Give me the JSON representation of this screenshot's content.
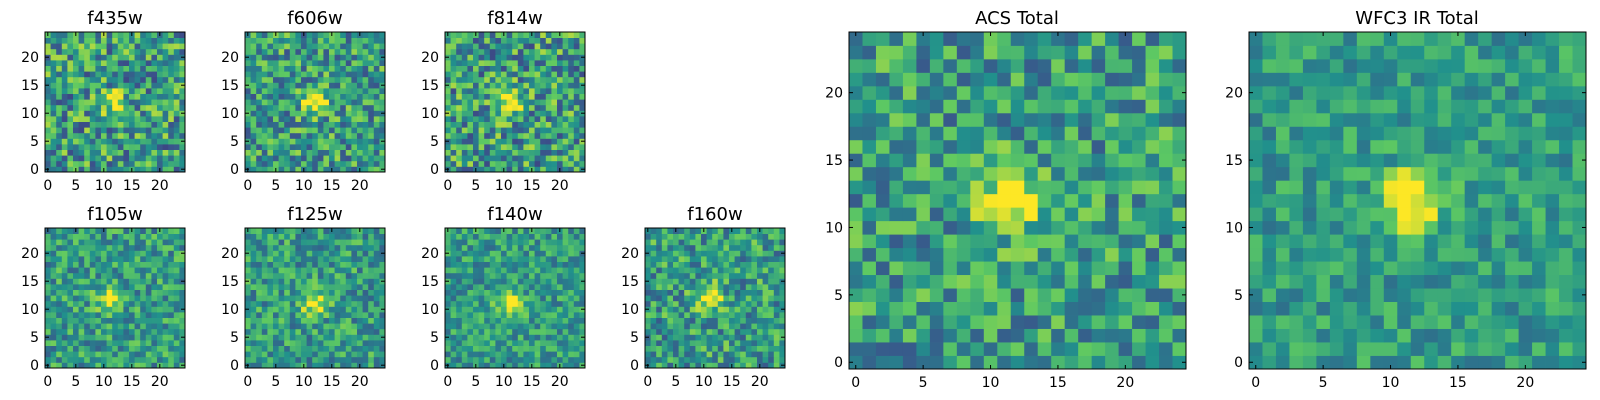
{
  "figure": {
    "background": "#ffffff",
    "colormap": "viridis",
    "colormap_stops": [
      "#440154",
      "#3b528b",
      "#21918c",
      "#5ec962",
      "#fde725"
    ],
    "axis_color": "#000000"
  },
  "chart_data": [
    {
      "type": "heatmap",
      "title": "f435w",
      "size": 25,
      "ticks": [
        0,
        5,
        10,
        15,
        20
      ],
      "xlim": [
        0,
        24
      ],
      "ylim": [
        0,
        24
      ],
      "center": [
        12,
        12
      ],
      "source_strength": 0.35,
      "noise_level": 0.55,
      "seed": 11
    },
    {
      "type": "heatmap",
      "title": "f606w",
      "size": 25,
      "ticks": [
        0,
        5,
        10,
        15,
        20
      ],
      "xlim": [
        0,
        24
      ],
      "ylim": [
        0,
        24
      ],
      "center": [
        12,
        12
      ],
      "source_strength": 0.55,
      "noise_level": 0.5,
      "seed": 23
    },
    {
      "type": "heatmap",
      "title": "f814w",
      "size": 25,
      "ticks": [
        0,
        5,
        10,
        15,
        20
      ],
      "xlim": [
        0,
        24
      ],
      "ylim": [
        0,
        24
      ],
      "center": [
        11,
        12
      ],
      "source_strength": 0.5,
      "noise_level": 0.55,
      "seed": 37
    },
    {
      "type": "heatmap",
      "title": "f105w",
      "size": 25,
      "ticks": [
        0,
        5,
        10,
        15,
        20
      ],
      "xlim": [
        0,
        24
      ],
      "ylim": [
        0,
        24
      ],
      "center": [
        11,
        12
      ],
      "source_strength": 0.4,
      "noise_level": 0.4,
      "seed": 41
    },
    {
      "type": "heatmap",
      "title": "f125w",
      "size": 25,
      "ticks": [
        0,
        5,
        10,
        15,
        20
      ],
      "xlim": [
        0,
        24
      ],
      "ylim": [
        0,
        24
      ],
      "center": [
        12,
        11
      ],
      "source_strength": 0.45,
      "noise_level": 0.4,
      "seed": 53
    },
    {
      "type": "heatmap",
      "title": "f140w",
      "size": 25,
      "ticks": [
        0,
        5,
        10,
        15,
        20
      ],
      "xlim": [
        0,
        24
      ],
      "ylim": [
        0,
        24
      ],
      "center": [
        11,
        11
      ],
      "source_strength": 0.45,
      "noise_level": 0.35,
      "seed": 67
    },
    {
      "type": "heatmap",
      "title": "f160w",
      "size": 25,
      "ticks": [
        0,
        5,
        10,
        15,
        20
      ],
      "xlim": [
        0,
        24
      ],
      "ylim": [
        0,
        24
      ],
      "center": [
        11,
        12
      ],
      "source_strength": 0.5,
      "noise_level": 0.45,
      "seed": 79
    },
    {
      "type": "heatmap",
      "title": "ACS Total",
      "size": 25,
      "ticks": [
        0,
        5,
        10,
        15,
        20
      ],
      "xlim": [
        0,
        24
      ],
      "ylim": [
        0,
        24
      ],
      "center": [
        11.5,
        12
      ],
      "source_strength": 0.6,
      "noise_level": 0.45,
      "seed": 97
    },
    {
      "type": "heatmap",
      "title": "WFC3 IR Total",
      "size": 25,
      "ticks": [
        0,
        5,
        10,
        15,
        20
      ],
      "xlim": [
        0,
        24
      ],
      "ylim": [
        0,
        24
      ],
      "center": [
        11.5,
        12
      ],
      "source_strength": 0.55,
      "noise_level": 0.3,
      "seed": 113
    }
  ]
}
